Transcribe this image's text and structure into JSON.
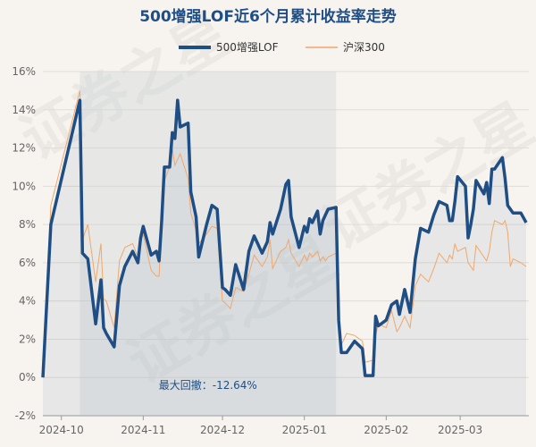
{
  "chart_data": {
    "type": "line",
    "title": "500增强LOF近6个月累计收益率走势",
    "y_unit": "%",
    "ylim": [
      -2,
      16
    ],
    "y_ticks": [
      -2,
      0,
      2,
      4,
      6,
      8,
      10,
      12,
      14,
      16
    ],
    "y_tick_labels": [
      "-2%",
      "0%",
      "2%",
      "4%",
      "6%",
      "8%",
      "10%",
      "12%",
      "14%",
      "16%"
    ],
    "x_tick_labels": [
      "2024-10",
      "2024-11",
      "2024-12",
      "2025-01",
      "2025-02",
      "2025-03"
    ],
    "x_tick_dates": [
      "2024-10-01",
      "2024-11-01",
      "2024-12-01",
      "2025-01-01",
      "2025-02-01",
      "2025-03-01"
    ],
    "x_domain": [
      "2024-09-24",
      "2025-03-27"
    ],
    "max_drawdown_label": "最大回撤：-12.64%",
    "max_drawdown_range": [
      "2024-10-08",
      "2025-01-13"
    ],
    "grid": true,
    "legend_position": "top-center",
    "series": [
      {
        "name": "500增强LOF",
        "color": "#1f4e85",
        "points": [
          [
            "2024-09-24",
            0.0
          ],
          [
            "2024-09-27",
            8.0
          ],
          [
            "2024-10-08",
            14.5
          ],
          [
            "2024-10-09",
            6.5
          ],
          [
            "2024-10-11",
            6.2
          ],
          [
            "2024-10-14",
            2.8
          ],
          [
            "2024-10-16",
            5.1
          ],
          [
            "2024-10-17",
            2.6
          ],
          [
            "2024-10-18",
            2.3
          ],
          [
            "2024-10-21",
            1.6
          ],
          [
            "2024-10-23",
            4.8
          ],
          [
            "2024-10-25",
            5.8
          ],
          [
            "2024-10-28",
            6.6
          ],
          [
            "2024-10-30",
            6.0
          ],
          [
            "2024-10-31",
            7.3
          ],
          [
            "2024-11-01",
            7.9
          ],
          [
            "2024-11-04",
            6.4
          ],
          [
            "2024-11-06",
            6.6
          ],
          [
            "2024-11-07",
            6.1
          ],
          [
            "2024-11-08",
            8.2
          ],
          [
            "2024-11-09",
            11.0
          ],
          [
            "2024-11-11",
            11.0
          ],
          [
            "2024-11-12",
            12.8
          ],
          [
            "2024-11-13",
            12.5
          ],
          [
            "2024-11-14",
            14.5
          ],
          [
            "2024-11-15",
            13.1
          ],
          [
            "2024-11-18",
            13.3
          ],
          [
            "2024-11-19",
            9.7
          ],
          [
            "2024-11-21",
            8.4
          ],
          [
            "2024-11-22",
            6.3
          ],
          [
            "2024-11-25",
            8.0
          ],
          [
            "2024-11-27",
            9.0
          ],
          [
            "2024-11-29",
            8.8
          ],
          [
            "2024-12-01",
            4.7
          ],
          [
            "2024-12-02",
            4.6
          ],
          [
            "2024-12-04",
            4.3
          ],
          [
            "2024-12-06",
            5.9
          ],
          [
            "2024-12-09",
            4.6
          ],
          [
            "2024-12-11",
            6.6
          ],
          [
            "2024-12-13",
            7.4
          ],
          [
            "2024-12-16",
            6.5
          ],
          [
            "2024-12-18",
            7.1
          ],
          [
            "2024-12-19",
            8.1
          ],
          [
            "2024-12-20",
            7.5
          ],
          [
            "2024-12-23",
            8.8
          ],
          [
            "2024-12-25",
            10.1
          ],
          [
            "2024-12-26",
            10.3
          ],
          [
            "2024-12-27",
            8.4
          ],
          [
            "2024-12-30",
            6.8
          ],
          [
            "2025-01-01",
            7.9
          ],
          [
            "2025-01-02",
            7.6
          ],
          [
            "2025-01-03",
            8.3
          ],
          [
            "2025-01-04",
            8.1
          ],
          [
            "2025-01-06",
            8.7
          ],
          [
            "2025-01-07",
            7.5
          ],
          [
            "2025-01-08",
            8.2
          ],
          [
            "2025-01-09",
            8.5
          ],
          [
            "2025-01-10",
            8.8
          ],
          [
            "2025-01-13",
            8.9
          ],
          [
            "2025-01-14",
            3.0
          ],
          [
            "2025-01-15",
            1.3
          ],
          [
            "2025-01-17",
            1.3
          ],
          [
            "2025-01-20",
            1.9
          ],
          [
            "2025-01-23",
            1.5
          ],
          [
            "2025-01-24",
            0.1
          ],
          [
            "2025-01-27",
            0.1
          ],
          [
            "2025-01-28",
            3.2
          ],
          [
            "2025-01-29",
            2.7
          ],
          [
            "2025-02-01",
            3.0
          ],
          [
            "2025-02-03",
            3.8
          ],
          [
            "2025-02-05",
            4.0
          ],
          [
            "2025-02-06",
            3.3
          ],
          [
            "2025-02-08",
            4.6
          ],
          [
            "2025-02-10",
            3.4
          ],
          [
            "2025-02-12",
            6.2
          ],
          [
            "2025-02-14",
            7.8
          ],
          [
            "2025-02-17",
            7.6
          ],
          [
            "2025-02-19",
            8.5
          ],
          [
            "2025-02-21",
            9.2
          ],
          [
            "2025-02-24",
            9.0
          ],
          [
            "2025-02-25",
            8.2
          ],
          [
            "2025-02-26",
            8.2
          ],
          [
            "2025-02-27",
            9.2
          ],
          [
            "2025-02-28",
            10.5
          ],
          [
            "2025-03-03",
            10.0
          ],
          [
            "2025-03-04",
            7.3
          ],
          [
            "2025-03-05",
            8.0
          ],
          [
            "2025-03-06",
            8.8
          ],
          [
            "2025-03-07",
            10.3
          ],
          [
            "2025-03-10",
            9.6
          ],
          [
            "2025-03-11",
            10.2
          ],
          [
            "2025-03-12",
            9.1
          ],
          [
            "2025-03-13",
            10.9
          ],
          [
            "2025-03-14",
            10.9
          ],
          [
            "2025-03-17",
            11.5
          ],
          [
            "2025-03-18",
            10.4
          ],
          [
            "2025-03-19",
            9.0
          ],
          [
            "2025-03-20",
            8.8
          ],
          [
            "2025-03-21",
            8.6
          ],
          [
            "2025-03-24",
            8.6
          ],
          [
            "2025-03-26",
            8.1
          ]
        ]
      },
      {
        "name": "沪深300",
        "color": "#f0a86b",
        "points": [
          [
            "2024-09-24",
            0.0
          ],
          [
            "2024-09-27",
            9.0
          ],
          [
            "2024-10-08",
            15.0
          ],
          [
            "2024-10-09",
            7.2
          ],
          [
            "2024-10-11",
            8.0
          ],
          [
            "2024-10-14",
            5.0
          ],
          [
            "2024-10-16",
            7.0
          ],
          [
            "2024-10-17",
            4.1
          ],
          [
            "2024-10-18",
            4.0
          ],
          [
            "2024-10-21",
            2.6
          ],
          [
            "2024-10-23",
            6.1
          ],
          [
            "2024-10-25",
            6.8
          ],
          [
            "2024-10-28",
            7.0
          ],
          [
            "2024-10-30",
            6.3
          ],
          [
            "2024-10-31",
            7.0
          ],
          [
            "2024-11-01",
            7.5
          ],
          [
            "2024-11-04",
            5.6
          ],
          [
            "2024-11-06",
            5.3
          ],
          [
            "2024-11-07",
            5.3
          ],
          [
            "2024-11-08",
            8.6
          ],
          [
            "2024-11-09",
            10.3
          ],
          [
            "2024-11-11",
            11.0
          ],
          [
            "2024-11-12",
            12.0
          ],
          [
            "2024-11-13",
            11.1
          ],
          [
            "2024-11-14",
            11.4
          ],
          [
            "2024-11-15",
            11.7
          ],
          [
            "2024-11-18",
            10.4
          ],
          [
            "2024-11-19",
            8.6
          ],
          [
            "2024-11-21",
            7.7
          ],
          [
            "2024-11-22",
            7.0
          ],
          [
            "2024-11-25",
            7.5
          ],
          [
            "2024-11-27",
            7.9
          ],
          [
            "2024-11-29",
            7.8
          ],
          [
            "2024-12-01",
            4.0
          ],
          [
            "2024-12-02",
            3.9
          ],
          [
            "2024-12-04",
            3.6
          ],
          [
            "2024-12-06",
            4.7
          ],
          [
            "2024-12-09",
            4.5
          ],
          [
            "2024-12-11",
            5.4
          ],
          [
            "2024-12-13",
            6.4
          ],
          [
            "2024-12-16",
            5.8
          ],
          [
            "2024-12-18",
            6.3
          ],
          [
            "2024-12-19",
            7.2
          ],
          [
            "2024-12-20",
            5.7
          ],
          [
            "2024-12-23",
            6.6
          ],
          [
            "2024-12-25",
            6.8
          ],
          [
            "2024-12-26",
            7.2
          ],
          [
            "2024-12-27",
            6.5
          ],
          [
            "2024-12-30",
            5.8
          ],
          [
            "2025-01-01",
            6.4
          ],
          [
            "2025-01-02",
            6.1
          ],
          [
            "2025-01-03",
            6.5
          ],
          [
            "2025-01-04",
            6.3
          ],
          [
            "2025-01-06",
            6.6
          ],
          [
            "2025-01-07",
            6.1
          ],
          [
            "2025-01-08",
            6.3
          ],
          [
            "2025-01-09",
            6.1
          ],
          [
            "2025-01-10",
            6.3
          ],
          [
            "2025-01-13",
            6.5
          ],
          [
            "2025-01-14",
            3.2
          ],
          [
            "2025-01-15",
            1.7
          ],
          [
            "2025-01-17",
            2.3
          ],
          [
            "2025-01-20",
            2.2
          ],
          [
            "2025-01-23",
            1.9
          ],
          [
            "2025-01-24",
            0.8
          ],
          [
            "2025-01-27",
            0.9
          ],
          [
            "2025-01-28",
            2.2
          ],
          [
            "2025-01-29",
            2.8
          ],
          [
            "2025-02-01",
            2.6
          ],
          [
            "2025-02-03",
            3.5
          ],
          [
            "2025-02-05",
            2.4
          ],
          [
            "2025-02-06",
            2.6
          ],
          [
            "2025-02-08",
            3.2
          ],
          [
            "2025-02-10",
            2.6
          ],
          [
            "2025-02-12",
            4.8
          ],
          [
            "2025-02-14",
            5.4
          ],
          [
            "2025-02-17",
            5.0
          ],
          [
            "2025-02-19",
            5.7
          ],
          [
            "2025-02-21",
            6.5
          ],
          [
            "2025-02-24",
            6.0
          ],
          [
            "2025-02-25",
            6.4
          ],
          [
            "2025-02-26",
            6.2
          ],
          [
            "2025-02-27",
            7.0
          ],
          [
            "2025-02-28",
            6.6
          ],
          [
            "2025-03-03",
            6.8
          ],
          [
            "2025-03-04",
            6.0
          ],
          [
            "2025-03-05",
            5.8
          ],
          [
            "2025-03-06",
            5.6
          ],
          [
            "2025-03-07",
            6.9
          ],
          [
            "2025-03-10",
            6.3
          ],
          [
            "2025-03-11",
            6.1
          ],
          [
            "2025-03-12",
            6.6
          ],
          [
            "2025-03-13",
            7.6
          ],
          [
            "2025-03-14",
            8.2
          ],
          [
            "2025-03-17",
            8.0
          ],
          [
            "2025-03-18",
            8.2
          ],
          [
            "2025-03-19",
            7.6
          ],
          [
            "2025-03-20",
            5.8
          ],
          [
            "2025-03-21",
            6.2
          ],
          [
            "2025-03-24",
            6.0
          ],
          [
            "2025-03-26",
            5.8
          ]
        ]
      }
    ]
  }
}
